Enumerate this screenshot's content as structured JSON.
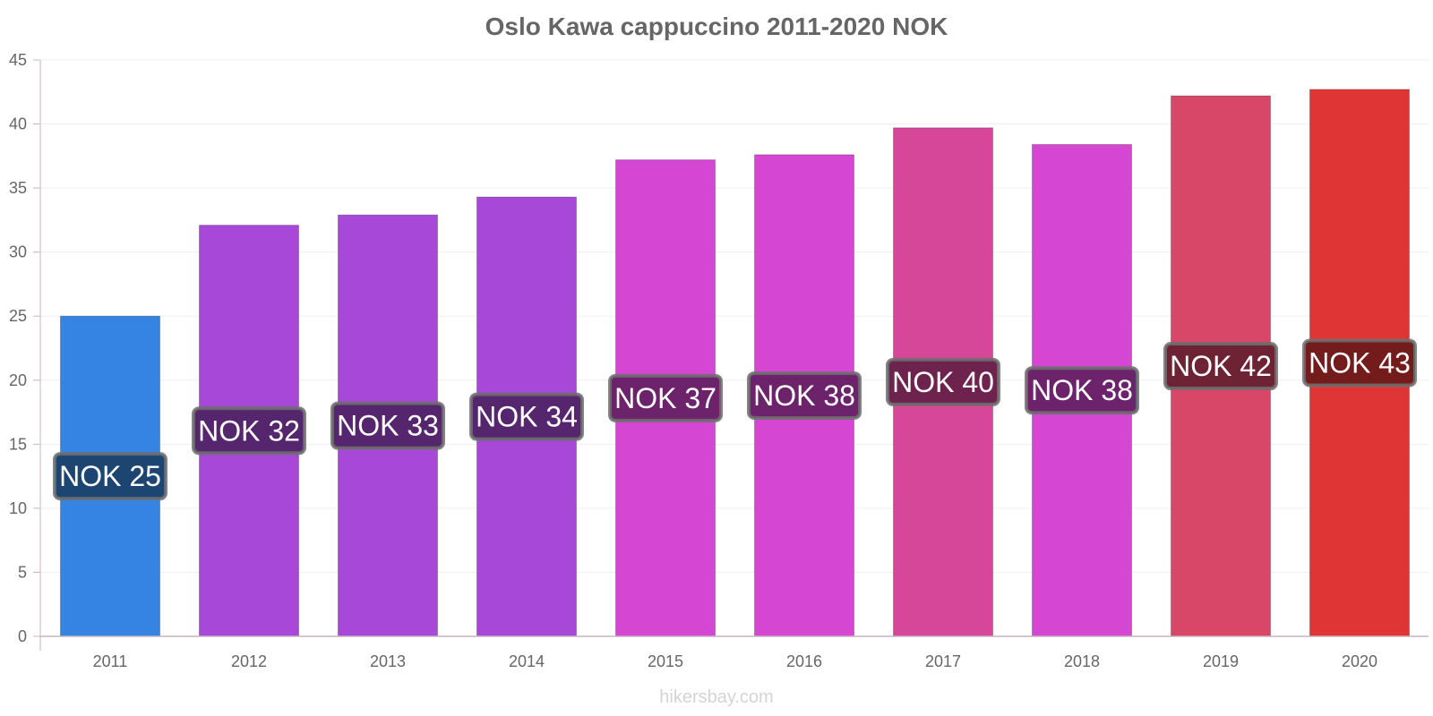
{
  "chart_data": {
    "type": "bar",
    "title": "Oslo Kawa cappuccino 2011-2020 NOK",
    "xlabel": "",
    "ylabel": "",
    "categories": [
      "2011",
      "2012",
      "2013",
      "2014",
      "2015",
      "2016",
      "2017",
      "2018",
      "2019",
      "2020"
    ],
    "values": [
      25.0,
      32.1,
      32.9,
      34.3,
      37.2,
      37.6,
      39.7,
      38.4,
      42.2,
      42.7
    ],
    "data_labels": [
      "NOK 25",
      "NOK 32",
      "NOK 33",
      "NOK 34",
      "NOK 37",
      "NOK 38",
      "NOK 40",
      "NOK 38",
      "NOK 42",
      "NOK 43"
    ],
    "bar_colors": [
      "#3584e4",
      "#a748d9",
      "#a748d9",
      "#a748d9",
      "#d546d3",
      "#d546d3",
      "#d6479a",
      "#d546d3",
      "#d84768",
      "#e03535"
    ],
    "label_box_colors": [
      "#1d4571",
      "#55266d",
      "#55266d",
      "#55266d",
      "#6c236b",
      "#6c236b",
      "#6e234f",
      "#6c236b",
      "#6e2335",
      "#741b1b"
    ],
    "ylim": [
      0,
      45
    ],
    "yticks": [
      0,
      5,
      10,
      15,
      20,
      25,
      30,
      35,
      40,
      45
    ],
    "grid": true,
    "legend": "none"
  },
  "watermark": "hikersbay.com"
}
